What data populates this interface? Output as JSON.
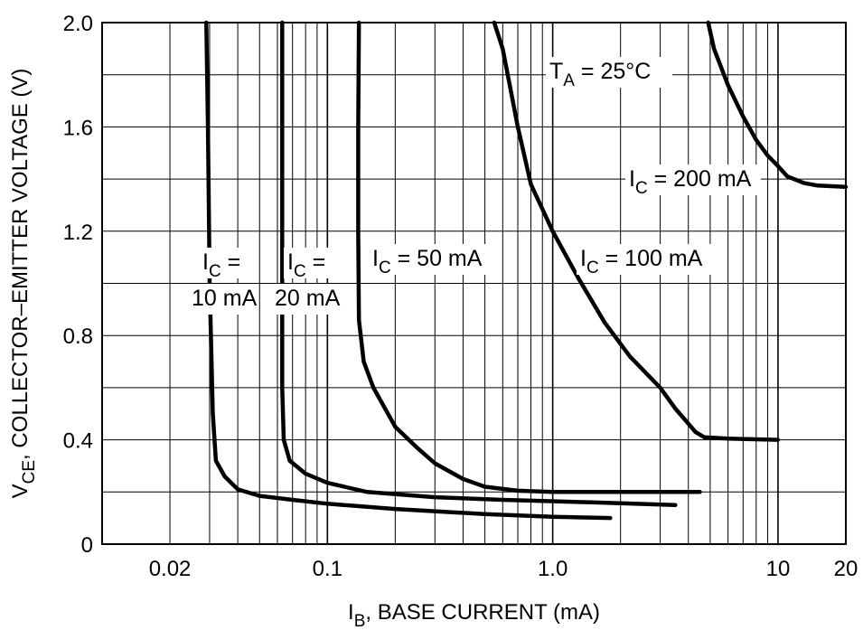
{
  "chart_data": {
    "type": "line",
    "title": "",
    "xlabel": {
      "main": "I",
      "sub": "B",
      "rest": ", BASE CURRENT (mA)"
    },
    "ylabel": {
      "main": "V",
      "sub": "CE",
      "rest": ", COLLECTOR–EMITTER VOLTAGE (V)"
    },
    "x_scale": "log",
    "xlim": [
      0.01,
      20
    ],
    "ylim": [
      0,
      2.0
    ],
    "grid": true,
    "x_ticks": [
      {
        "value": 0.02,
        "label": "0.02"
      },
      {
        "value": 0.1,
        "label": "0.1"
      },
      {
        "value": 1.0,
        "label": "1.0"
      },
      {
        "value": 10,
        "label": "10"
      },
      {
        "value": 20,
        "label": "20"
      }
    ],
    "y_ticks": [
      {
        "value": 0,
        "label": "0"
      },
      {
        "value": 0.4,
        "label": "0.4"
      },
      {
        "value": 0.8,
        "label": "0.8"
      },
      {
        "value": 1.2,
        "label": "1.2"
      },
      {
        "value": 1.6,
        "label": "1.6"
      },
      {
        "value": 2.0,
        "label": "2.0"
      }
    ],
    "annotations": [
      {
        "id": "temp",
        "main": "T",
        "sub": "A",
        "rest": " = 25°C"
      },
      {
        "id": "ic10a",
        "main": "I",
        "sub": "C",
        "rest": " ="
      },
      {
        "id": "ic10b",
        "main": "",
        "sub": "",
        "rest": "10 mA"
      },
      {
        "id": "ic20a",
        "main": "I",
        "sub": "C",
        "rest": " ="
      },
      {
        "id": "ic20b",
        "main": "",
        "sub": "",
        "rest": "20 mA"
      },
      {
        "id": "ic50",
        "main": "I",
        "sub": "C",
        "rest": " = 50 mA"
      },
      {
        "id": "ic100",
        "main": "I",
        "sub": "C",
        "rest": " = 100 mA"
      },
      {
        "id": "ic200",
        "main": "I",
        "sub": "C",
        "rest": " = 200 mA"
      }
    ],
    "series": [
      {
        "points": [
          [
            0.029,
            2.0
          ],
          [
            0.0295,
            1.6
          ],
          [
            0.03,
            1.0
          ],
          [
            0.031,
            0.5
          ],
          [
            0.032,
            0.32
          ],
          [
            0.035,
            0.26
          ],
          [
            0.04,
            0.21
          ],
          [
            0.05,
            0.185
          ],
          [
            0.07,
            0.17
          ],
          [
            0.1,
            0.155
          ],
          [
            0.2,
            0.135
          ],
          [
            0.5,
            0.115
          ],
          [
            1.0,
            0.105
          ],
          [
            1.8,
            0.1
          ]
        ]
      },
      {
        "points": [
          [
            0.063,
            2.0
          ],
          [
            0.063,
            1.2
          ],
          [
            0.063,
            0.6
          ],
          [
            0.064,
            0.4
          ],
          [
            0.068,
            0.32
          ],
          [
            0.08,
            0.27
          ],
          [
            0.1,
            0.235
          ],
          [
            0.15,
            0.2
          ],
          [
            0.3,
            0.18
          ],
          [
            0.6,
            0.17
          ],
          [
            1.5,
            0.16
          ],
          [
            3.5,
            0.15
          ]
        ]
      },
      {
        "points": [
          [
            0.138,
            2.0
          ],
          [
            0.137,
            1.6
          ],
          [
            0.137,
            1.2
          ],
          [
            0.138,
            0.86
          ],
          [
            0.145,
            0.7
          ],
          [
            0.16,
            0.6
          ],
          [
            0.2,
            0.45
          ],
          [
            0.25,
            0.37
          ],
          [
            0.3,
            0.31
          ],
          [
            0.4,
            0.25
          ],
          [
            0.5,
            0.22
          ],
          [
            0.7,
            0.205
          ],
          [
            1.0,
            0.2
          ],
          [
            2.0,
            0.2
          ],
          [
            4.5,
            0.2
          ]
        ]
      },
      {
        "points": [
          [
            0.55,
            2.0
          ],
          [
            0.6,
            1.9
          ],
          [
            0.7,
            1.6
          ],
          [
            0.8,
            1.38
          ],
          [
            1.0,
            1.2
          ],
          [
            1.3,
            1.02
          ],
          [
            1.7,
            0.85
          ],
          [
            2.2,
            0.72
          ],
          [
            3.0,
            0.6
          ],
          [
            3.5,
            0.52
          ],
          [
            4.3,
            0.43
          ],
          [
            4.7,
            0.41
          ],
          [
            6.0,
            0.405
          ],
          [
            10.0,
            0.4
          ]
        ]
      },
      {
        "points": [
          [
            4.9,
            2.0
          ],
          [
            5.2,
            1.9
          ],
          [
            6.0,
            1.76
          ],
          [
            7.0,
            1.64
          ],
          [
            8.0,
            1.55
          ],
          [
            9.0,
            1.49
          ],
          [
            10.0,
            1.45
          ],
          [
            11.0,
            1.41
          ],
          [
            13.0,
            1.385
          ],
          [
            15.0,
            1.375
          ],
          [
            20.0,
            1.37
          ]
        ]
      }
    ]
  }
}
